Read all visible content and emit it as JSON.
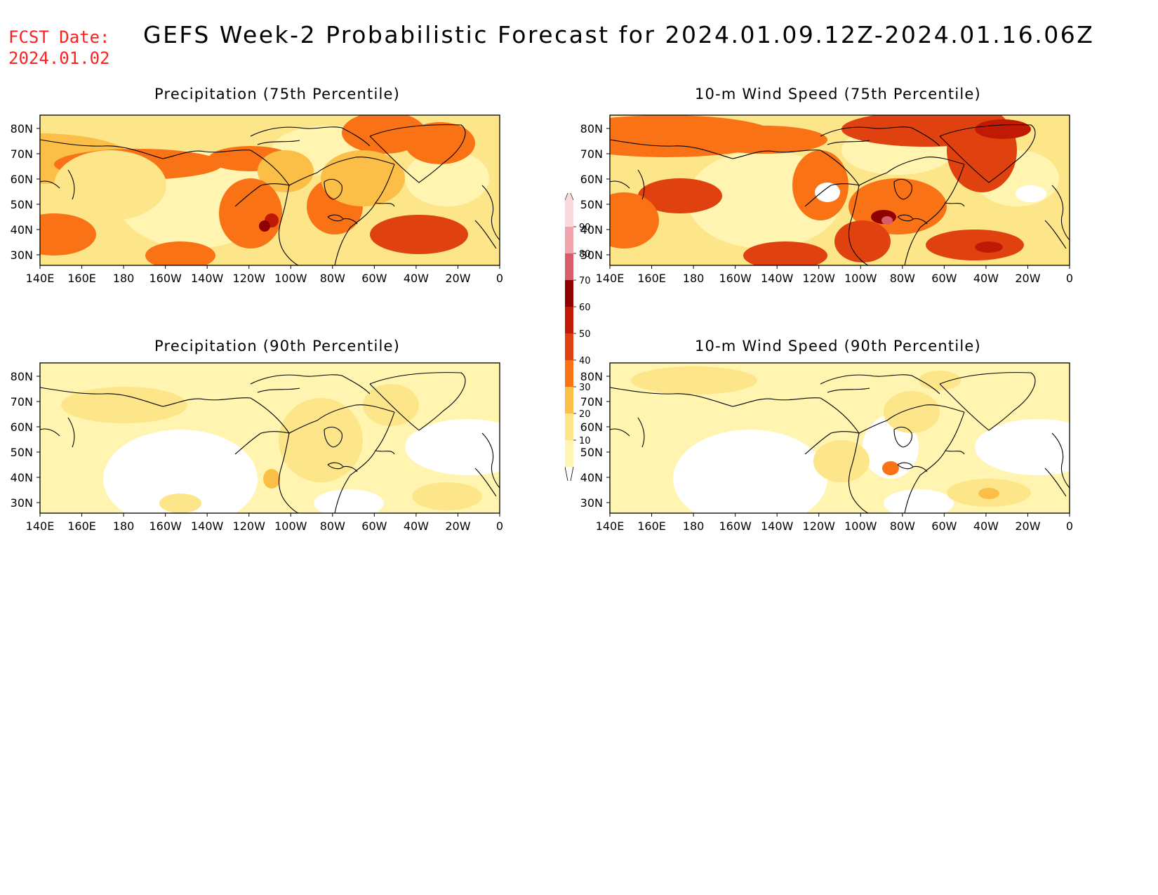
{
  "header": {
    "fcst_label": "FCST Date:",
    "fcst_date": "2024.01.02",
    "title": "GEFS Week-2 Probabilistic Forecast for 2024.01.09.12Z-2024.01.16.06Z"
  },
  "colors": {
    "fcst_text": "#ff2020",
    "levels": [
      "#fff5b0",
      "#fde68a",
      "#fbbf47",
      "#f97316",
      "#e0420f",
      "#c01a04",
      "#8f0000",
      "#d85c6a",
      "#f2a3ac",
      "#fcd9dd"
    ],
    "coastline": "#000000"
  },
  "lon_ticks": [
    "140E",
    "160E",
    "180",
    "160W",
    "140W",
    "120W",
    "100W",
    "80W",
    "60W",
    "40W",
    "20W",
    "0"
  ],
  "lat_ticks": [
    "80N",
    "70N",
    "60N",
    "50N",
    "40N",
    "30N"
  ],
  "colorbar": {
    "ticks": [
      "10",
      "20",
      "30",
      "40",
      "50",
      "60",
      "70",
      "80",
      "90"
    ],
    "colors": [
      "#fff5b0",
      "#fde68a",
      "#fbbf47",
      "#f97316",
      "#e0420f",
      "#c01a04",
      "#8f0000",
      "#d85c6a",
      "#f2a3ac",
      "#fcd9dd"
    ]
  },
  "panels": [
    {
      "id": "precip75",
      "title": "Precipitation (75th Percentile)",
      "intensity": "high"
    },
    {
      "id": "wind75",
      "title": "10-m Wind Speed (75th Percentile)",
      "intensity": "high"
    },
    {
      "id": "precip90",
      "title": "Precipitation (90th Percentile)",
      "intensity": "low"
    },
    {
      "id": "wind90",
      "title": "10-m Wind Speed (90th Percentile)",
      "intensity": "low"
    }
  ]
}
